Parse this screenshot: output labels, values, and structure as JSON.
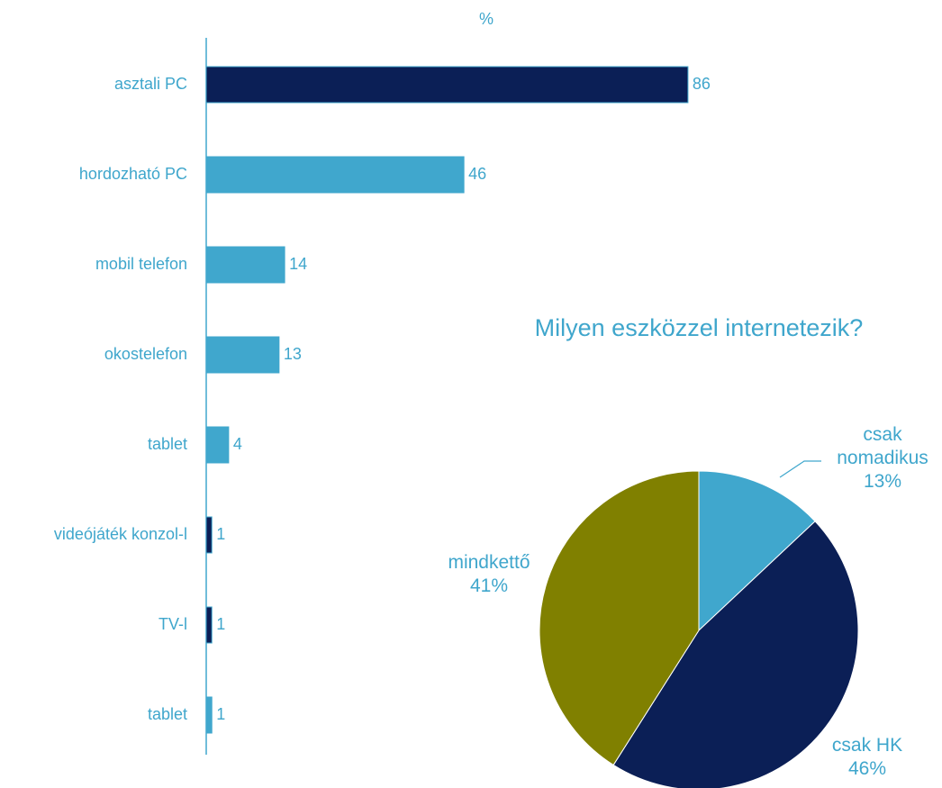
{
  "chart_data": [
    {
      "type": "bar",
      "orientation": "horizontal",
      "title": "%",
      "categories": [
        "asztali PC",
        "hordozható PC",
        "mobil telefon",
        "okostelefon",
        "tablet",
        "videójáték konzol-l",
        "TV-l",
        "tablet"
      ],
      "values": [
        86,
        46,
        14,
        13,
        4,
        1,
        1,
        1
      ],
      "colors": [
        "#0b1f56",
        "#40a7cd",
        "#40a7cd",
        "#40a7cd",
        "#40a7cd",
        "#0b1f56",
        "#0b1f56",
        "#40a7cd"
      ],
      "xlim": [
        0,
        100
      ]
    },
    {
      "type": "pie",
      "title": "Milyen eszközzel internetezik?",
      "categories": [
        "csak nomadikus",
        "csak HK",
        "mindkettő"
      ],
      "values": [
        13,
        46,
        41
      ],
      "value_labels": [
        "13%",
        "46%",
        "41%"
      ],
      "colors": [
        "#40a7cd",
        "#0b1f56",
        "#808000"
      ]
    }
  ]
}
